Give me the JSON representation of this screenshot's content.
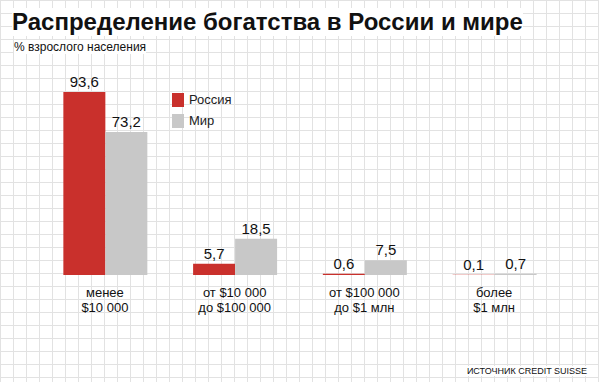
{
  "chart_data": {
    "type": "bar",
    "title": "Распределение богатства в России и мире",
    "subtitle": "% взрослого населения",
    "source": "ИСТОЧНИК CREDIT SUISSE",
    "categories": [
      "менее\n$10 000",
      "от $10 000\nдо $100 000",
      "от $100 000\nдо $1 млн",
      "более\n$1 млн"
    ],
    "series": [
      {
        "name": "Россия",
        "color": "#c9302c",
        "values": [
          93.6,
          5.7,
          0.6,
          0.1
        ],
        "value_labels": [
          "93,6",
          "5,7",
          "0,6",
          "0,1"
        ]
      },
      {
        "name": "Мир",
        "color": "#c8c8c8",
        "values": [
          73.2,
          18.5,
          7.5,
          0.7
        ],
        "value_labels": [
          "73,2",
          "18,5",
          "7,5",
          "0,7"
        ]
      }
    ],
    "data_labels": true,
    "tick_labels": "x",
    "legend": "top-left"
  }
}
